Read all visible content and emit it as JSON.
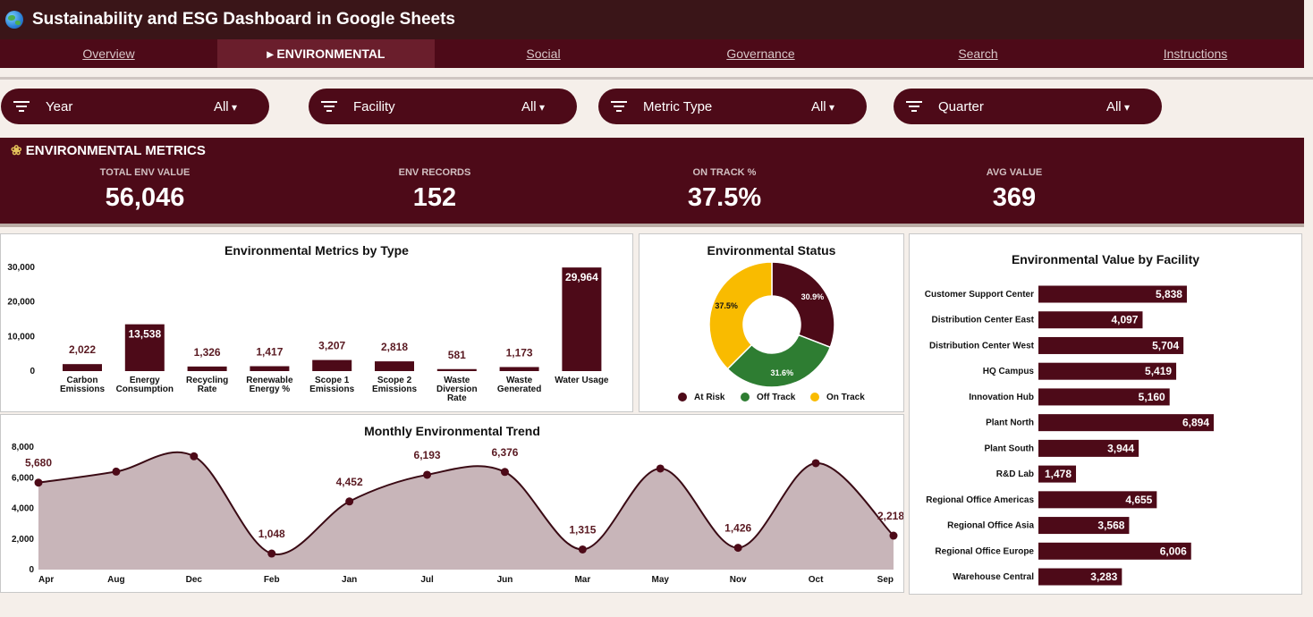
{
  "app": {
    "title": "Sustainability and ESG Dashboard in Google Sheets"
  },
  "tabs": [
    {
      "label": "Overview"
    },
    {
      "label": "▸ ENVIRONMENTAL"
    },
    {
      "label": "Social"
    },
    {
      "label": "Governance"
    },
    {
      "label": "Search"
    },
    {
      "label": "Instructions"
    }
  ],
  "filters": [
    {
      "label": "Year",
      "value": "All"
    },
    {
      "label": "Facility",
      "value": "All"
    },
    {
      "label": "Metric Type",
      "value": "All"
    },
    {
      "label": "Quarter",
      "value": "All"
    }
  ],
  "metrics": {
    "heading": "ENVIRONMENTAL METRICS",
    "cards": [
      {
        "label": "TOTAL ENV VALUE",
        "value": "56,046"
      },
      {
        "label": "ENV RECORDS",
        "value": "152"
      },
      {
        "label": "ON TRACK %",
        "value": "37.5%"
      },
      {
        "label": "AVG VALUE",
        "value": "369"
      }
    ]
  },
  "colors": {
    "maroon": "#4d0a18",
    "offtrack": "#2e7d32",
    "ontrack": "#f9bb00",
    "area": "#c8b5b9"
  },
  "chart_data": [
    {
      "type": "bar",
      "title": "Environmental Metrics by Type",
      "categories": [
        [
          "Carbon",
          "Emissions"
        ],
        [
          "Energy",
          "Consumption"
        ],
        [
          "Recycling",
          "Rate"
        ],
        [
          "Renewable",
          "Energy %"
        ],
        [
          "Scope 1",
          "Emissions"
        ],
        [
          "Scope 2",
          "Emissions"
        ],
        [
          "Waste",
          "Diversion",
          "Rate"
        ],
        [
          "Waste",
          "Generated"
        ],
        [
          "Water Usage"
        ]
      ],
      "values": [
        2022,
        13538,
        1326,
        1417,
        3207,
        2818,
        581,
        1173,
        29964
      ],
      "value_labels": [
        "2,022",
        "13,538",
        "1,326",
        "1,417",
        "3,207",
        "2,818",
        "581",
        "1,173",
        "29,964"
      ],
      "ylim": [
        0,
        30000
      ],
      "yticks": [
        "30,000",
        "20,000",
        "10,000",
        "0"
      ]
    },
    {
      "type": "pie",
      "title": "Environmental Status",
      "slices": [
        {
          "name": "At Risk",
          "value": 30.9,
          "label": "30.9%"
        },
        {
          "name": "Off Track",
          "value": 31.6,
          "label": "31.6%"
        },
        {
          "name": "On Track",
          "value": 37.5,
          "label": "37.5%"
        }
      ]
    },
    {
      "type": "bar",
      "orientation": "horizontal",
      "title": "Environmental Value by Facility",
      "categories": [
        "Customer Support Center",
        "Distribution Center East",
        "Distribution Center West",
        "HQ Campus",
        "Innovation Hub",
        "Plant North",
        "Plant South",
        "R&D Lab",
        "Regional Office Americas",
        "Regional Office Asia",
        "Regional Office Europe",
        "Warehouse Central"
      ],
      "values": [
        5838,
        4097,
        5704,
        5419,
        5160,
        6894,
        3944,
        1478,
        4655,
        3568,
        6006,
        3283
      ],
      "value_labels": [
        "5,838",
        "4,097",
        "5,704",
        "5,419",
        "5,160",
        "6,894",
        "3,944",
        "1,478",
        "4,655",
        "3,568",
        "6,006",
        "3,283"
      ],
      "xlim": [
        0,
        7000
      ]
    },
    {
      "type": "area",
      "title": "Monthly Environmental Trend",
      "x": [
        "Apr",
        "Aug",
        "Dec",
        "Feb",
        "Jan",
        "Jul",
        "Jun",
        "Mar",
        "May",
        "Nov",
        "Oct",
        "Sep"
      ],
      "values": [
        5680,
        6400,
        7400,
        1048,
        4452,
        6193,
        6376,
        1315,
        6600,
        1426,
        6950,
        2218
      ],
      "value_labels": [
        "5,680",
        "",
        "",
        "1,048",
        "4,452",
        "6,193",
        "6,376",
        "1,315",
        "",
        "1,426",
        "",
        "2,218"
      ],
      "ylim": [
        0,
        8000
      ],
      "yticks": [
        "8,000",
        "6,000",
        "4,000",
        "2,000",
        "0"
      ]
    }
  ]
}
